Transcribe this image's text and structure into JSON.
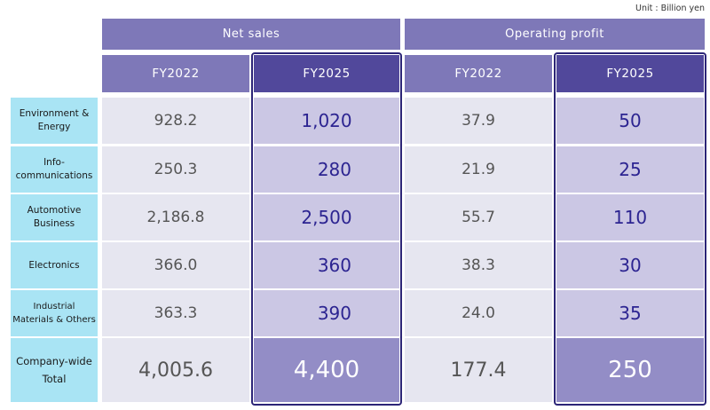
{
  "unit_label": "Unit : Billion yen",
  "groups": {
    "net_sales": "Net sales",
    "operating_profit": "Operating profit"
  },
  "years": [
    "FY2022",
    "FY2025",
    "FY2022",
    "FY2025"
  ],
  "rows": [
    {
      "label": "Environment & Energy",
      "net_fy2022": "928.2",
      "net_fy2025": "1,020",
      "op_fy2022": "37.9",
      "op_fy2025": "50"
    },
    {
      "label": "Info-communications",
      "net_fy2022": "250.3",
      "net_fy2025": "280",
      "op_fy2022": "21.9",
      "op_fy2025": "25"
    },
    {
      "label": "Automotive Business",
      "net_fy2022": "2,186.8",
      "net_fy2025": "2,500",
      "op_fy2022": "55.7",
      "op_fy2025": "110"
    },
    {
      "label": "Electronics",
      "net_fy2022": "366.0",
      "net_fy2025": "360",
      "op_fy2022": "38.3",
      "op_fy2025": "30"
    },
    {
      "label": "Industrial Materials & Others",
      "net_fy2022": "363.3",
      "net_fy2025": "390",
      "op_fy2022": "24.0",
      "op_fy2025": "35"
    }
  ],
  "total": {
    "label": "Company-wide Total",
    "net_fy2022": "4,005.6",
    "net_fy2025": "4,400",
    "op_fy2022": "177.4",
    "op_fy2025": "250"
  },
  "colors": {
    "header": "#7e78b8",
    "header_highlight": "#51489b",
    "label_bg": "#a9e4f4",
    "value_bg": "#e6e6f0",
    "highlight_bg": "#cbc7e4",
    "total_highlight_bg": "#938dc6",
    "highlight_text": "#2c2491"
  }
}
